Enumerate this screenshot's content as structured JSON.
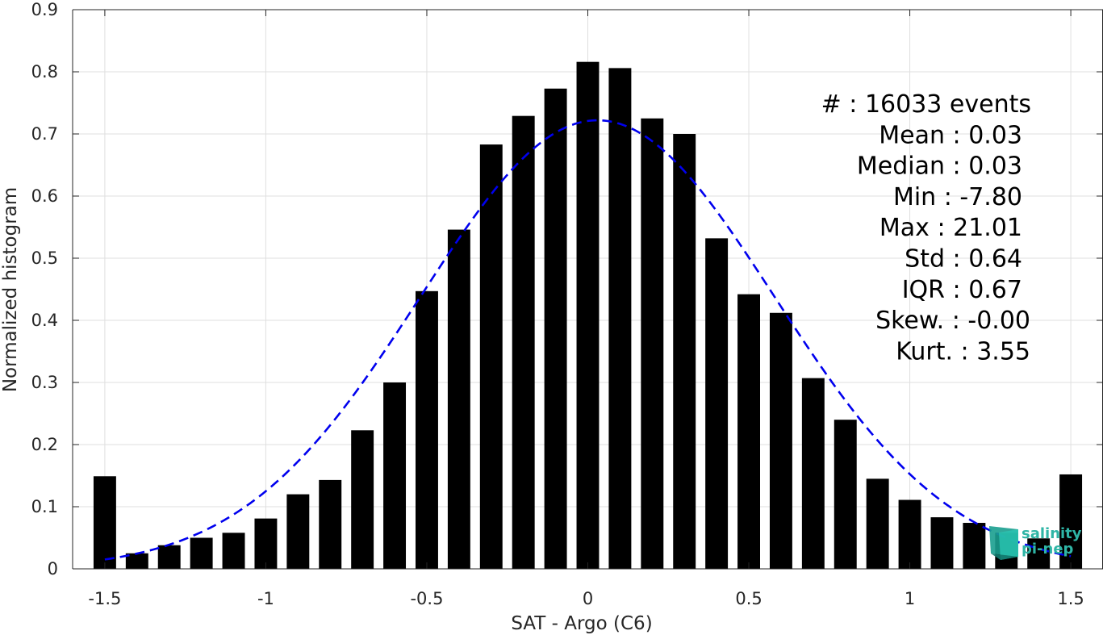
{
  "chart_data": {
    "type": "bar",
    "xlabel": "SAT - Argo (C6)",
    "ylabel": "Normalized histogram",
    "xlim": [
      -1.6,
      1.6
    ],
    "ylim": [
      0,
      0.9
    ],
    "grid": true,
    "x_ticks": [
      -1.5,
      -1,
      -0.5,
      0,
      0.5,
      1,
      1.5
    ],
    "x_tick_labels": [
      "-1.5",
      "-1",
      "-0.5",
      "0",
      "0.5",
      "1",
      "1.5"
    ],
    "y_ticks": [
      0,
      0.1,
      0.2,
      0.3,
      0.4,
      0.5,
      0.6,
      0.7,
      0.8,
      0.9
    ],
    "y_tick_labels": [
      "0",
      "0.1",
      "0.2",
      "0.3",
      "0.4",
      "0.5",
      "0.6",
      "0.7",
      "0.8",
      "0.9"
    ],
    "bar_width": 0.07,
    "bars": {
      "x": [
        -1.5,
        -1.4,
        -1.3,
        -1.2,
        -1.1,
        -1.0,
        -0.9,
        -0.8,
        -0.7,
        -0.6,
        -0.5,
        -0.4,
        -0.3,
        -0.2,
        -0.1,
        0.0,
        0.1,
        0.2,
        0.3,
        0.4,
        0.5,
        0.6,
        0.7,
        0.8,
        0.9,
        1.0,
        1.1,
        1.2,
        1.3,
        1.4,
        1.5
      ],
      "values": [
        0.149,
        0.025,
        0.038,
        0.05,
        0.058,
        0.081,
        0.12,
        0.143,
        0.223,
        0.3,
        0.447,
        0.546,
        0.683,
        0.729,
        0.773,
        0.816,
        0.806,
        0.725,
        0.7,
        0.532,
        0.442,
        0.412,
        0.307,
        0.24,
        0.145,
        0.111,
        0.083,
        0.074,
        0.058,
        0.049,
        0.152
      ],
      "color": "#000000"
    },
    "fit_curve": {
      "style": "dashed",
      "color": "#0000ee",
      "mean": 0.03,
      "std": 0.55,
      "peak": 0.722,
      "x_range": [
        -1.5,
        1.5
      ]
    },
    "stats_lines": [
      "#  : 16033 events",
      "Mean : 0.03",
      "Median : 0.03",
      "Min : -7.80",
      "Max : 21.01",
      "Std : 0.64",
      "IQR : 0.67",
      "Skew. : -0.00",
      "Kurt. : 3.55"
    ],
    "watermark": {
      "line1": "salinity",
      "line2": "pi-nep",
      "color": "#2fb5a6"
    }
  }
}
